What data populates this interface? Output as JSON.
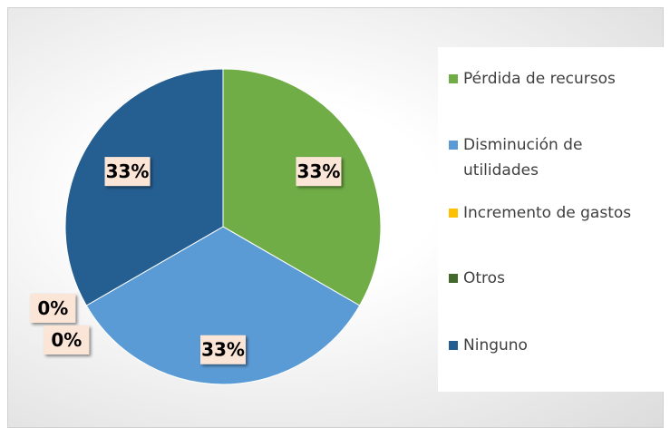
{
  "chart_data": {
    "type": "pie",
    "categories": [
      "Pérdida de recursos",
      "Disminución de utilidades",
      "Incremento de gastos",
      "Otros",
      "Ninguno"
    ],
    "values": [
      33,
      33,
      0,
      0,
      33
    ],
    "value_labels": [
      "33%",
      "33%",
      "0%",
      "0%",
      "33%"
    ],
    "colors": [
      "#70ad47",
      "#5b9bd5",
      "#ffc000",
      "#43682b",
      "#255e91"
    ],
    "legend": "right"
  }
}
